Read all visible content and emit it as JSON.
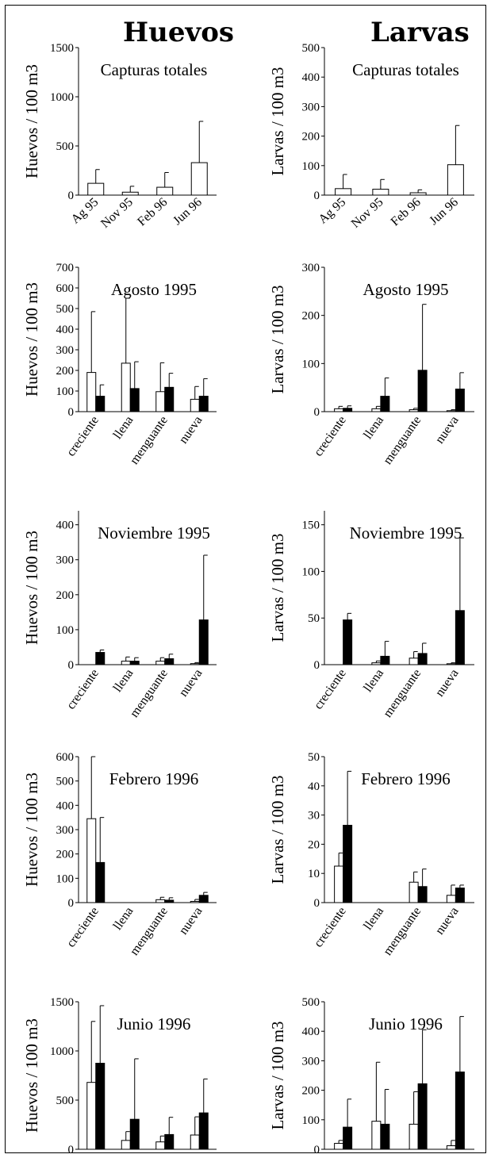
{
  "headers": {
    "left": "Huevos",
    "right": "Larvas"
  },
  "chart_data": [
    {
      "type": "bar",
      "title": "Capturas totales",
      "ylabel": "Huevos / 100 m3",
      "ylim": [
        0,
        1500
      ],
      "yticks": [
        0,
        500,
        1000,
        1500
      ],
      "categories": [
        "Ag 95",
        "Nov 95",
        "Feb 96",
        "Jun 96"
      ],
      "series": [
        {
          "fill": "#ffffff",
          "values": [
            120,
            30,
            80,
            330
          ],
          "errors": [
            140,
            60,
            150,
            420
          ]
        }
      ]
    },
    {
      "type": "bar",
      "title": "Capturas totales",
      "ylabel": "Larvas / 100 m3",
      "ylim": [
        0,
        500
      ],
      "yticks": [
        0,
        100,
        200,
        300,
        400,
        500
      ],
      "categories": [
        "Ag 95",
        "Nov 95",
        "Feb 96",
        "Jun 96"
      ],
      "series": [
        {
          "fill": "#ffffff",
          "values": [
            22,
            20,
            8,
            103
          ],
          "errors": [
            48,
            33,
            10,
            133
          ]
        }
      ]
    },
    {
      "type": "bar",
      "title": "Agosto 1995",
      "ylabel": "Huevos / 100 m3",
      "ylim": [
        0,
        700
      ],
      "yticks": [
        0,
        100,
        200,
        300,
        400,
        500,
        600,
        700
      ],
      "categories": [
        "creciente",
        "llena",
        "menguante",
        "nueva"
      ],
      "series": [
        {
          "fill": "#ffffff",
          "values": [
            190,
            235,
            97,
            60
          ],
          "errors": [
            295,
            315,
            140,
            62
          ]
        },
        {
          "fill": "#000000",
          "values": [
            75,
            112,
            118,
            75
          ],
          "errors": [
            55,
            130,
            68,
            85
          ]
        }
      ]
    },
    {
      "type": "bar",
      "title": "Agosto 1995",
      "ylabel": "Larvas / 100 m3",
      "ylim": [
        0,
        300
      ],
      "yticks": [
        0,
        100,
        200,
        300
      ],
      "categories": [
        "creciente",
        "llena",
        "menguante",
        "nueva"
      ],
      "series": [
        {
          "fill": "#ffffff",
          "values": [
            6,
            6,
            4,
            2
          ],
          "errors": [
            5,
            5,
            3,
            2
          ]
        },
        {
          "fill": "#000000",
          "values": [
            7,
            32,
            86,
            47
          ],
          "errors": [
            5,
            38,
            137,
            34
          ]
        }
      ]
    },
    {
      "type": "bar",
      "title": "Noviembre 1995",
      "ylabel": "Huevos / 100 m3",
      "ylim": [
        0,
        440
      ],
      "yticks": [
        0,
        100,
        200,
        300,
        400
      ],
      "categories": [
        "creciente",
        "llena",
        "menguante",
        "nueva"
      ],
      "series": [
        {
          "fill": "#ffffff",
          "values": [
            0,
            10,
            10,
            3
          ],
          "errors": [
            0,
            12,
            10,
            3
          ]
        },
        {
          "fill": "#000000",
          "values": [
            35,
            10,
            17,
            128
          ],
          "errors": [
            7,
            10,
            13,
            185
          ]
        }
      ]
    },
    {
      "type": "bar",
      "title": "Noviembre 1995",
      "ylabel": "Larvas / 100 m3",
      "ylim": [
        0,
        165
      ],
      "yticks": [
        0,
        50,
        100,
        150
      ],
      "categories": [
        "creciente",
        "llena",
        "menguante",
        "nueva"
      ],
      "series": [
        {
          "fill": "#ffffff",
          "values": [
            0,
            2,
            7,
            1
          ],
          "errors": [
            0,
            2,
            7,
            1
          ]
        },
        {
          "fill": "#000000",
          "values": [
            48,
            9,
            12,
            58
          ],
          "errors": [
            7,
            16,
            11,
            78
          ]
        }
      ]
    },
    {
      "type": "bar",
      "title": "Febrero 1996",
      "ylabel": "Huevos / 100 m3",
      "ylim": [
        0,
        600
      ],
      "yticks": [
        0,
        100,
        200,
        300,
        400,
        500,
        600
      ],
      "categories": [
        "creciente",
        "llena",
        "menguante",
        "nueva"
      ],
      "series": [
        {
          "fill": "#ffffff",
          "values": [
            345,
            0,
            12,
            5
          ],
          "errors": [
            255,
            0,
            10,
            8
          ]
        },
        {
          "fill": "#000000",
          "values": [
            165,
            0,
            10,
            30
          ],
          "errors": [
            185,
            0,
            10,
            12
          ]
        }
      ]
    },
    {
      "type": "bar",
      "title": "Febrero 1996",
      "ylabel": "Larvas / 100 m3",
      "ylim": [
        0,
        50
      ],
      "yticks": [
        0,
        10,
        20,
        30,
        40,
        50
      ],
      "categories": [
        "creciente",
        "llena",
        "menguante",
        "nueva"
      ],
      "series": [
        {
          "fill": "#ffffff",
          "values": [
            12.5,
            0,
            7,
            2.5
          ],
          "errors": [
            4.5,
            0,
            3.5,
            3.5
          ]
        },
        {
          "fill": "#000000",
          "values": [
            26.5,
            0,
            5.5,
            5
          ],
          "errors": [
            18.5,
            0,
            6,
            1
          ]
        }
      ]
    },
    {
      "type": "bar",
      "title": "Junio 1996",
      "ylabel": "Huevos / 100 m3",
      "ylim": [
        0,
        1500
      ],
      "yticks": [
        0,
        500,
        1000,
        1500
      ],
      "categories": [
        "creciente",
        "llena",
        "menguante",
        "nueva"
      ],
      "series": [
        {
          "fill": "#ffffff",
          "values": [
            680,
            90,
            75,
            145
          ],
          "errors": [
            620,
            90,
            60,
            185
          ]
        },
        {
          "fill": "#000000",
          "values": [
            875,
            305,
            150,
            370
          ],
          "errors": [
            585,
            615,
            175,
            345
          ]
        }
      ]
    },
    {
      "type": "bar",
      "title": "Junio 1996",
      "ylabel": "Larvas / 100 m3",
      "ylim": [
        0,
        500
      ],
      "yticks": [
        0,
        100,
        200,
        300,
        400,
        500
      ],
      "categories": [
        "creciente",
        "llena",
        "menguante",
        "nueva"
      ],
      "series": [
        {
          "fill": "#ffffff",
          "values": [
            20,
            95,
            85,
            12
          ],
          "errors": [
            10,
            200,
            110,
            18
          ]
        },
        {
          "fill": "#000000",
          "values": [
            75,
            85,
            222,
            262
          ],
          "errors": [
            95,
            118,
            183,
            188
          ]
        }
      ]
    }
  ]
}
